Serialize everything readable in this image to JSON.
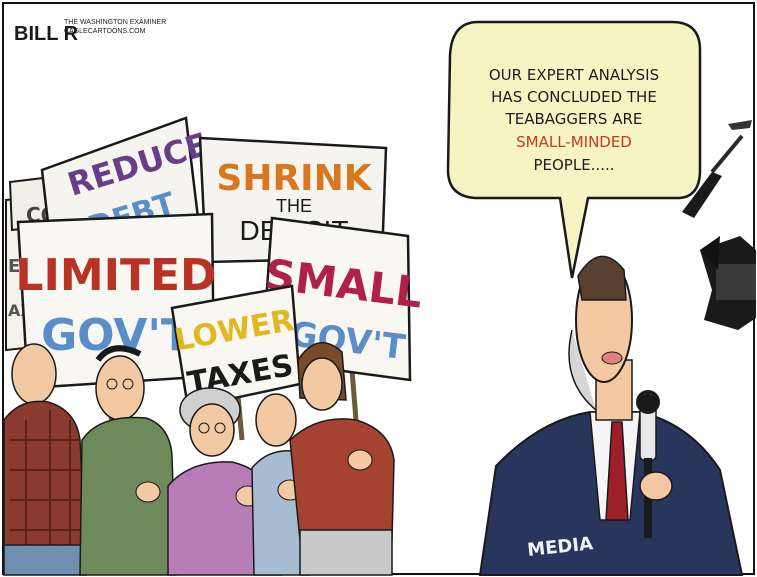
{
  "signature": {
    "artist": "BILL R",
    "credit_line_1": "THE WASHINGTON EXAMINER",
    "credit_line_2": "CAGLECARTOONS.COM"
  },
  "speech_bubble": {
    "line_1": "OUR EXPERT ANALYSIS",
    "line_2": "HAS CONCLUDED THE",
    "line_3": "TEABAGGERS ARE",
    "line_4": "SMALL-MINDED",
    "line_5": "PEOPLE....."
  },
  "signs": {
    "reduce_title": "REDUCE",
    "reduce_sub": "DEBT",
    "shrink_title": "SHRINK",
    "shrink_the": "THE",
    "shrink_sub": "DEFICIT",
    "limited_title": "LIMITED",
    "limited_sub": "GOV'T",
    "small_title": "SMALL",
    "small_sub": "GOV'T",
    "lower_title": "LOWER",
    "lower_sub": "TAXES",
    "partial_left_1": "ES",
    "partial_left_2": "AXA",
    "partial_back": "CO"
  },
  "reporter": {
    "jacket_label": "MEDIA"
  },
  "colors": {
    "bubble_fill": "#f7f4c4",
    "small_minded_red": "#c43a2a",
    "reduce_purple": "#6a3d8c",
    "shrink_orange": "#d9771f",
    "limited_red": "#b83323",
    "gov_blue": "#5b8ec9",
    "small_crimson": "#b0214a",
    "lower_yellow": "#e0b820",
    "jacket_navy": "#28355c",
    "tie_red": "#9c1f2a"
  }
}
